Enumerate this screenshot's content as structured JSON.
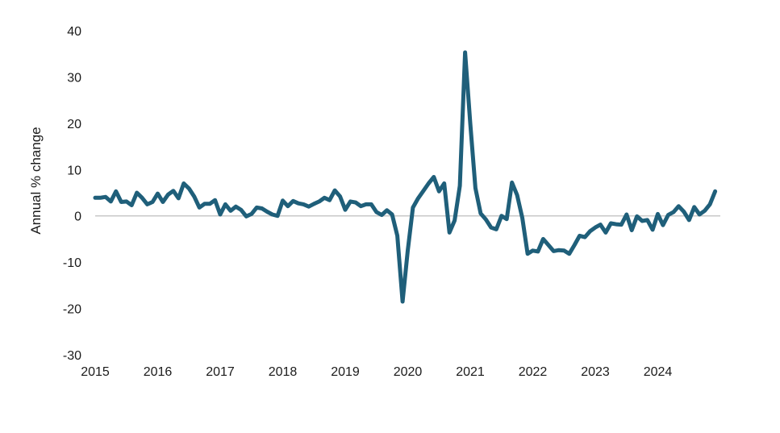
{
  "chart_data": {
    "type": "line",
    "title": "",
    "xlabel": "",
    "ylabel": "Annual % change",
    "ylim": [
      -30,
      40
    ],
    "yticks": [
      40,
      30,
      20,
      10,
      0,
      -10,
      -20,
      -30
    ],
    "xticks": [
      "2015",
      "2016",
      "2017",
      "2018",
      "2019",
      "2020",
      "2021",
      "2022",
      "2023",
      "2024"
    ],
    "xlim": [
      2015.0,
      2025.0
    ],
    "grid": false,
    "legend": "none",
    "line_color": "#1f5f7a",
    "zero_line_color": "#c8c8c8",
    "series": [
      {
        "x": [
          2015.0,
          2015.083,
          2015.167,
          2015.25,
          2015.333,
          2015.417,
          2015.5,
          2015.583,
          2015.667,
          2015.75,
          2015.833,
          2015.917,
          2016.0,
          2016.083,
          2016.167,
          2016.25,
          2016.333,
          2016.417,
          2016.5,
          2016.583,
          2016.667,
          2016.75,
          2016.833,
          2016.917,
          2017.0,
          2017.083,
          2017.167,
          2017.25,
          2017.333,
          2017.417,
          2017.5,
          2017.583,
          2017.667,
          2017.75,
          2017.833,
          2017.917,
          2018.0,
          2018.083,
          2018.167,
          2018.25,
          2018.333,
          2018.417,
          2018.5,
          2018.583,
          2018.667,
          2018.75,
          2018.833,
          2018.917,
          2019.0,
          2019.083,
          2019.167,
          2019.25,
          2019.333,
          2019.417,
          2019.5,
          2019.583,
          2019.667,
          2019.75,
          2019.833,
          2019.917,
          2020.0,
          2020.083,
          2020.167,
          2020.25,
          2020.333,
          2020.417,
          2020.5,
          2020.583,
          2020.667,
          2020.75,
          2020.833,
          2020.917,
          2021.0,
          2021.083,
          2021.167,
          2021.25,
          2021.333,
          2021.417,
          2021.5,
          2021.583,
          2021.667,
          2021.75,
          2021.833,
          2021.917,
          2022.0,
          2022.083,
          2022.167,
          2022.25,
          2022.333,
          2022.417,
          2022.5,
          2022.583,
          2022.667,
          2022.75,
          2022.833,
          2022.917,
          2023.0,
          2023.083,
          2023.167,
          2023.25,
          2023.333,
          2023.417,
          2023.5,
          2023.583,
          2023.667,
          2023.75,
          2023.833,
          2023.917,
          2024.0,
          2024.083,
          2024.167,
          2024.25,
          2024.333,
          2024.417,
          2024.5,
          2024.583,
          2024.667,
          2024.75,
          2024.833,
          2024.917
        ],
        "values": [
          3.9,
          3.9,
          4.1,
          3.1,
          5.3,
          3.0,
          3.1,
          2.3,
          5.0,
          3.9,
          2.5,
          3.0,
          4.8,
          3.0,
          4.6,
          5.4,
          3.8,
          7.0,
          5.9,
          4.2,
          1.8,
          2.6,
          2.6,
          3.4,
          0.3,
          2.5,
          1.1,
          2.0,
          1.3,
          -0.1,
          0.4,
          1.8,
          1.6,
          0.9,
          0.3,
          0.0,
          3.3,
          2.1,
          3.2,
          2.7,
          2.5,
          2.0,
          2.6,
          3.1,
          3.9,
          3.4,
          5.5,
          4.2,
          1.3,
          3.1,
          2.9,
          2.1,
          2.5,
          2.5,
          0.8,
          0.2,
          1.2,
          0.3,
          -4.3,
          -18.5,
          -7.5,
          1.8,
          3.8,
          5.4,
          7.0,
          8.4,
          5.3,
          7.0,
          -3.6,
          -1.0,
          6.5,
          35.3,
          20.0,
          6.0,
          0.5,
          -0.8,
          -2.5,
          -2.9,
          0.0,
          -0.7,
          7.2,
          4.5,
          -0.5,
          -8.2,
          -7.5,
          -7.7,
          -5.0,
          -6.3,
          -7.6,
          -7.4,
          -7.5,
          -8.2,
          -6.3,
          -4.3,
          -4.6,
          -3.3,
          -2.5,
          -1.9,
          -3.6,
          -1.6,
          -1.8,
          -1.9,
          0.3,
          -3.1,
          -0.1,
          -1.1,
          -0.9,
          -3.0,
          0.4,
          -2.0,
          0.2,
          0.8,
          2.1,
          0.9,
          -0.9,
          1.9,
          0.3,
          1.1,
          2.5,
          5.3
        ]
      }
    ]
  }
}
